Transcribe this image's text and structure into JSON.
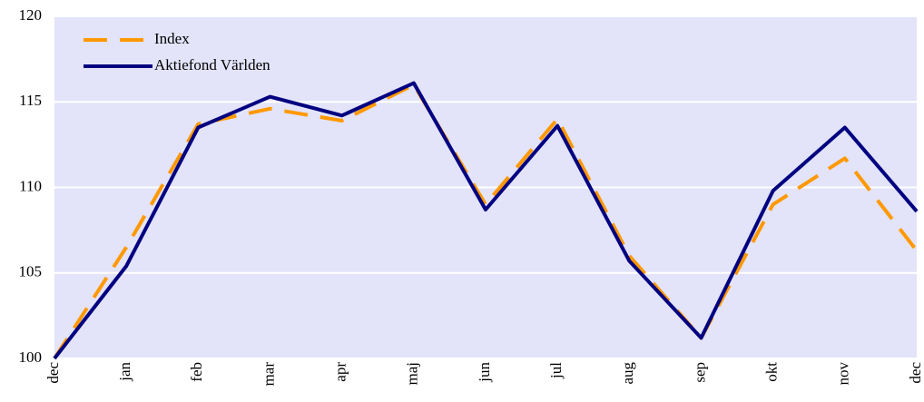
{
  "chart_data": {
    "type": "line",
    "categories": [
      "dec",
      "jan",
      "feb",
      "mar",
      "apr",
      "maj",
      "jun",
      "jul",
      "aug",
      "sep",
      "okt",
      "nov",
      "dec"
    ],
    "series": [
      {
        "name": "Index",
        "color": "#ff9900",
        "dashed": true,
        "values": [
          100,
          106.5,
          113.7,
          114.6,
          113.9,
          116.0,
          109.0,
          114.0,
          106.0,
          101.2,
          109.0,
          111.7,
          106.3
        ]
      },
      {
        "name": "Aktiefond Världen",
        "color": "#000080",
        "dashed": false,
        "values": [
          100,
          105.4,
          113.5,
          115.3,
          114.2,
          116.1,
          108.7,
          113.6,
          105.7,
          101.2,
          109.8,
          113.5,
          108.6
        ]
      }
    ],
    "ylim": [
      100,
      120
    ],
    "yticks": [
      100,
      105,
      110,
      115,
      120
    ],
    "grid": true,
    "legend": "top-left"
  }
}
